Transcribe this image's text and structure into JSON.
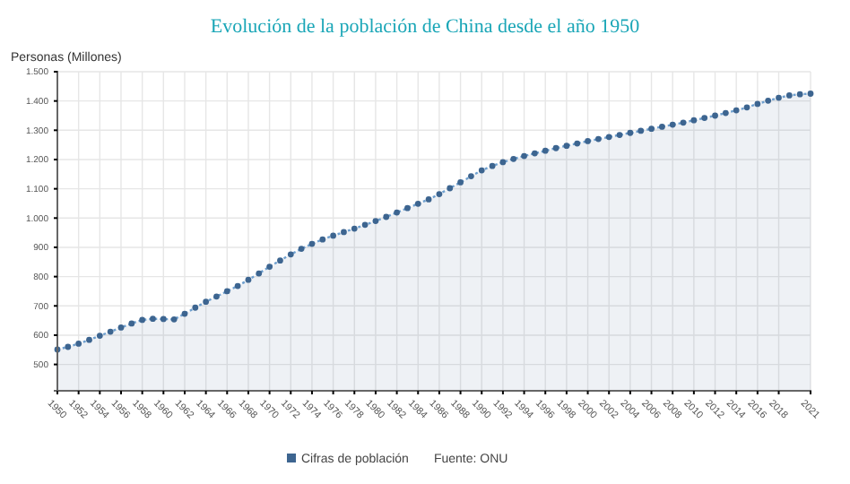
{
  "chart_data": {
    "type": "area",
    "title": "Evolución de la población de China desde el año 1950",
    "ylabel": "Personas (Millones)",
    "x": [
      1950,
      1951,
      1952,
      1953,
      1954,
      1955,
      1956,
      1957,
      1958,
      1959,
      1960,
      1961,
      1962,
      1963,
      1964,
      1965,
      1966,
      1967,
      1968,
      1969,
      1970,
      1971,
      1972,
      1973,
      1974,
      1975,
      1976,
      1977,
      1978,
      1979,
      1980,
      1981,
      1982,
      1983,
      1984,
      1985,
      1986,
      1987,
      1988,
      1989,
      1990,
      1991,
      1992,
      1993,
      1994,
      1995,
      1996,
      1997,
      1998,
      1999,
      2000,
      2001,
      2002,
      2003,
      2004,
      2005,
      2006,
      2007,
      2008,
      2009,
      2010,
      2011,
      2012,
      2013,
      2014,
      2015,
      2016,
      2017,
      2018,
      2019,
      2020,
      2021
    ],
    "series": [
      {
        "name": "Cifras de población",
        "color": "#3d6590",
        "values": [
          551,
          560,
          571,
          584,
          598,
          612,
          626,
          640,
          652,
          656,
          655,
          654,
          673,
          694,
          714,
          732,
          750,
          768,
          789,
          811,
          834,
          855,
          876,
          895,
          912,
          927,
          940,
          952,
          964,
          977,
          990,
          1004,
          1019,
          1034,
          1049,
          1064,
          1082,
          1102,
          1122,
          1143,
          1163,
          1178,
          1191,
          1202,
          1212,
          1221,
          1230,
          1239,
          1247,
          1255,
          1263,
          1270,
          1277,
          1284,
          1291,
          1298,
          1305,
          1312,
          1319,
          1326,
          1334,
          1342,
          1350,
          1359,
          1368,
          1378,
          1390,
          1401,
          1411,
          1419,
          1423,
          1425
        ]
      }
    ],
    "ylim": [
      410,
      1500
    ],
    "yticks": [
      {
        "value": 500,
        "label": "500"
      },
      {
        "value": 600,
        "label": "600"
      },
      {
        "value": 700,
        "label": "700"
      },
      {
        "value": 800,
        "label": "800"
      },
      {
        "value": 900,
        "label": "900"
      },
      {
        "value": 1000,
        "label": "1.000"
      },
      {
        "value": 1100,
        "label": "1.100"
      },
      {
        "value": 1200,
        "label": "1.200"
      },
      {
        "value": 1300,
        "label": "1.300"
      },
      {
        "value": 1400,
        "label": "1.400"
      },
      {
        "value": 1500,
        "label": "1.500"
      }
    ],
    "xlim": [
      1950,
      2021
    ],
    "xticks": [
      1950,
      1952,
      1954,
      1956,
      1958,
      1960,
      1962,
      1964,
      1966,
      1968,
      1970,
      1972,
      1974,
      1976,
      1978,
      1980,
      1982,
      1984,
      1986,
      1988,
      1990,
      1992,
      1994,
      1996,
      1998,
      2000,
      2002,
      2004,
      2006,
      2008,
      2010,
      2012,
      2014,
      2016,
      2018,
      2021
    ],
    "grid": true,
    "legend": "bottom",
    "marker": "circle",
    "line_style": "dotted",
    "annotations": [
      "Fuente: ONU"
    ]
  }
}
